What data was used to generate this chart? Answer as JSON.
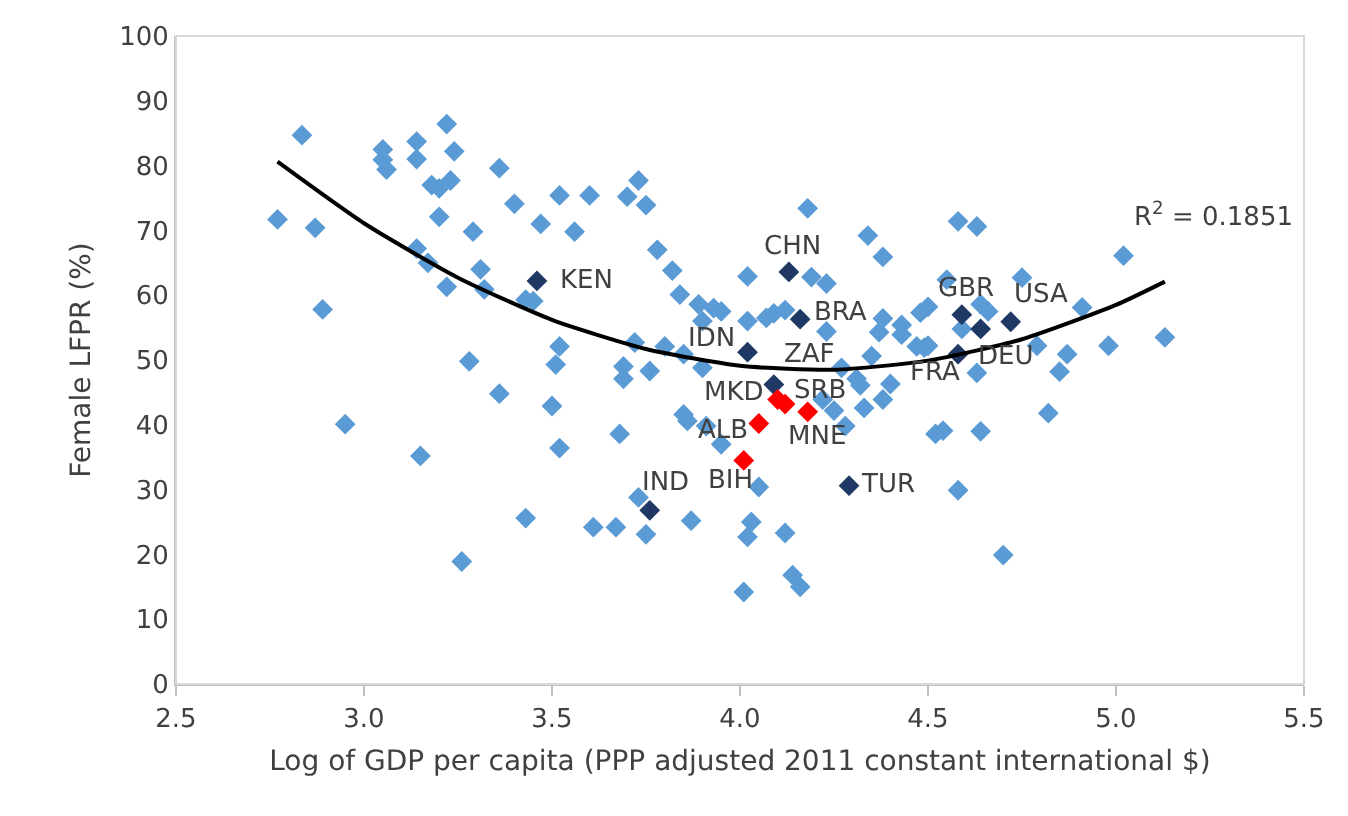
{
  "chart_data": {
    "type": "scatter",
    "xlabel": "Log of GDP per capita (PPP adjusted 2011 constant international $)",
    "ylabel": "Female LFPR (%)",
    "xlim": [
      2.5,
      5.5
    ],
    "xticks": [
      {
        "value": 2.5,
        "label": "2.5"
      },
      {
        "value": 3,
        "label": "3.0"
      },
      {
        "value": 3.5,
        "label": "3.5"
      },
      {
        "value": 4,
        "label": "4.0"
      },
      {
        "value": 4.5,
        "label": "4.5"
      },
      {
        "value": 5,
        "label": "5.0"
      },
      {
        "value": 5.5,
        "label": "5.5"
      }
    ],
    "ylim": [
      0,
      100
    ],
    "yticks": [
      0,
      10,
      20,
      30,
      40,
      50,
      60,
      70,
      80,
      90,
      100
    ],
    "grid": false,
    "legend": false,
    "marker": "diamond",
    "series": [
      {
        "color": "#5b9bd5",
        "x": [
          2.835,
          3.22,
          3.05,
          3.05,
          3.06,
          3.14,
          3.14,
          3.24,
          3.36,
          3.18,
          3.2,
          3.23,
          3.4,
          3.52,
          3.6,
          2.77,
          2.87,
          3.2,
          3.29,
          3.47,
          3.56,
          3.14,
          3.17,
          3.31,
          3.22,
          3.32,
          3.43,
          3.45,
          2.89,
          3.52,
          3.51,
          3.28,
          3.36,
          3.5,
          3.52,
          2.95,
          3.15,
          3.43,
          3.26,
          3.61,
          3.73,
          3.7,
          3.75,
          3.78,
          3.82,
          3.84,
          3.89,
          3.93,
          3.95,
          3.9,
          4.02,
          4.02,
          4.07,
          4.09,
          4.12,
          4.19,
          4.23,
          4.18,
          4.23,
          4.34,
          4.38,
          4.38,
          4.37,
          4.43,
          4.43,
          4.48,
          4.5,
          4.47,
          4.49,
          4.35,
          4.27,
          4.31,
          4.32,
          4.4,
          4.25,
          4.33,
          4.28,
          4.22,
          3.8,
          3.72,
          3.69,
          3.69,
          3.76,
          3.85,
          3.9,
          3.85,
          3.86,
          3.91,
          3.95,
          3.68,
          3.73,
          3.67,
          3.75,
          3.87,
          4.03,
          4.02,
          4.12,
          4.05,
          4.14,
          4.16,
          4.01,
          4.58,
          4.63,
          4.55,
          4.75,
          4.64,
          4.66,
          4.59,
          4.79,
          4.91,
          5.02,
          5.13,
          4.98,
          4.87,
          4.85,
          4.63,
          4.82,
          4.64,
          4.52,
          4.54,
          4.58,
          4.7,
          4.38,
          4.5
        ],
        "values": [
          84.7,
          86.4,
          82.5,
          80.9,
          79.4,
          83.7,
          81.0,
          82.2,
          79.6,
          77.0,
          76.5,
          77.7,
          74.1,
          75.4,
          75.4,
          71.7,
          70.4,
          72.1,
          69.8,
          71.0,
          69.8,
          67.2,
          65.0,
          64.0,
          61.3,
          60.9,
          59.3,
          59.1,
          57.8,
          52.1,
          49.3,
          49.8,
          44.8,
          42.9,
          36.4,
          40.1,
          35.2,
          25.6,
          18.9,
          24.2,
          77.7,
          75.2,
          73.9,
          67.0,
          63.8,
          60.1,
          58.6,
          58.0,
          57.5,
          56.0,
          62.9,
          56.0,
          56.5,
          57.2,
          57.7,
          62.8,
          61.8,
          73.4,
          54.4,
          69.2,
          65.9,
          56.4,
          54.3,
          55.4,
          53.9,
          57.3,
          58.2,
          52.1,
          51.9,
          50.6,
          48.8,
          47.1,
          46.1,
          46.3,
          42.2,
          42.6,
          39.8,
          43.9,
          52.1,
          52.7,
          49.0,
          47.1,
          48.3,
          50.9,
          48.8,
          41.6,
          40.6,
          39.8,
          37.0,
          38.6,
          28.8,
          24.2,
          23.1,
          25.2,
          25.0,
          22.7,
          23.3,
          30.4,
          16.8,
          15.0,
          14.2,
          71.4,
          70.6,
          62.4,
          62.7,
          58.6,
          57.5,
          54.8,
          52.2,
          58.1,
          66.1,
          53.5,
          52.2,
          50.9,
          48.2,
          48.0,
          41.8,
          39.0,
          38.6,
          39.1,
          29.9,
          19.9,
          43.9,
          52.2
        ]
      },
      {
        "color": "#1f3864",
        "x": [
          3.46,
          4.13,
          4.16,
          4.02,
          4.09,
          4.29,
          3.76,
          4.59,
          4.64,
          4.72,
          4.58
        ],
        "values": [
          62.2,
          63.6,
          56.3,
          51.2,
          46.2,
          30.6,
          26.8,
          57.0,
          54.8,
          55.9,
          50.9
        ]
      },
      {
        "color": "#ff0000",
        "x": [
          4.1,
          4.12,
          4.18,
          4.05,
          4.01
        ],
        "values": [
          43.9,
          43.2,
          42.0,
          40.2,
          34.5
        ]
      },
      {
        "type": "line",
        "color": "#000000",
        "marker": "none",
        "x": [
          2.77,
          3.0,
          3.25,
          3.5,
          3.75,
          4.0,
          4.25,
          4.5,
          4.75,
          5.0,
          5.13
        ],
        "values": [
          80.6,
          71.1,
          62.7,
          56.2,
          51.7,
          49.1,
          48.5,
          49.9,
          53.2,
          58.5,
          62.1
        ]
      }
    ],
    "annotations": [
      {
        "text": "KEN",
        "x": 3.46,
        "y": 62.2
      },
      {
        "text": "CHN",
        "x": 4.13,
        "y": 63.6
      },
      {
        "text": "BRA",
        "x": 4.16,
        "y": 56.3
      },
      {
        "text": "IDN",
        "x": 4.02,
        "y": 51.2
      },
      {
        "text": "ZAF",
        "x": 4.09,
        "y": 46.2
      },
      {
        "text": "MKD",
        "x": 4.1,
        "y": 43.9
      },
      {
        "text": "SRB",
        "x": 4.12,
        "y": 43.2
      },
      {
        "text": "ALB",
        "x": 4.05,
        "y": 40.2
      },
      {
        "text": "MNE",
        "x": 4.18,
        "y": 42.0
      },
      {
        "text": "BIH",
        "x": 4.01,
        "y": 34.5
      },
      {
        "text": "TUR",
        "x": 4.29,
        "y": 30.6
      },
      {
        "text": "IND",
        "x": 3.76,
        "y": 26.8
      },
      {
        "text": "GBR",
        "x": 4.59,
        "y": 57.0
      },
      {
        "text": "USA",
        "x": 4.72,
        "y": 55.9
      },
      {
        "text": "DEU",
        "x": 4.64,
        "y": 54.8
      },
      {
        "text": "FRA",
        "x": 4.58,
        "y": 50.9
      },
      {
        "text": "R$^{2}$ = 0.1851",
        "x": 5.13,
        "y": 62.1
      }
    ]
  }
}
